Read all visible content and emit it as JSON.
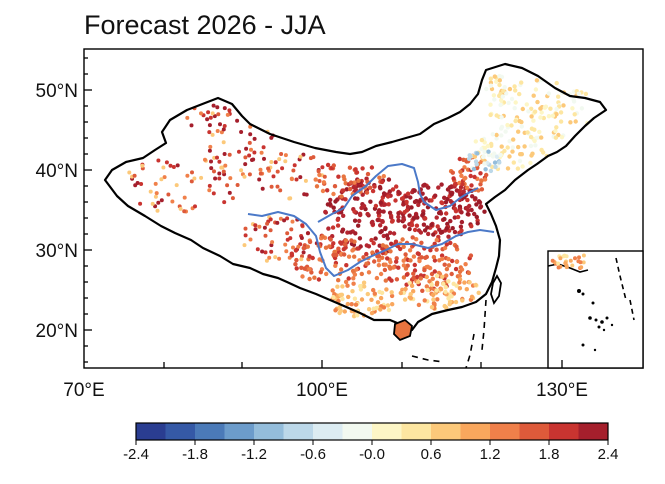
{
  "title": "Forecast 2026 - JJA",
  "lat_labels": [
    "50°N",
    "40°N",
    "30°N",
    "20°N"
  ],
  "lon_labels": [
    "70°E",
    "100°E",
    "130°E"
  ],
  "colorbar": {
    "labels": [
      "-2.4",
      "-1.8",
      "-1.2",
      "-0.6",
      "-0.0",
      "0.6",
      "1.2",
      "1.8",
      "2.4"
    ],
    "colors": [
      "#2a3d91",
      "#3559a6",
      "#4b7ab8",
      "#6c9ccb",
      "#94bddb",
      "#bcd8e9",
      "#dcecf2",
      "#f2f9f0",
      "#fdf6c6",
      "#fde6a1",
      "#fcc97a",
      "#f9a75d",
      "#f0804a",
      "#de5a3a",
      "#c93430",
      "#a51f2c"
    ]
  }
}
